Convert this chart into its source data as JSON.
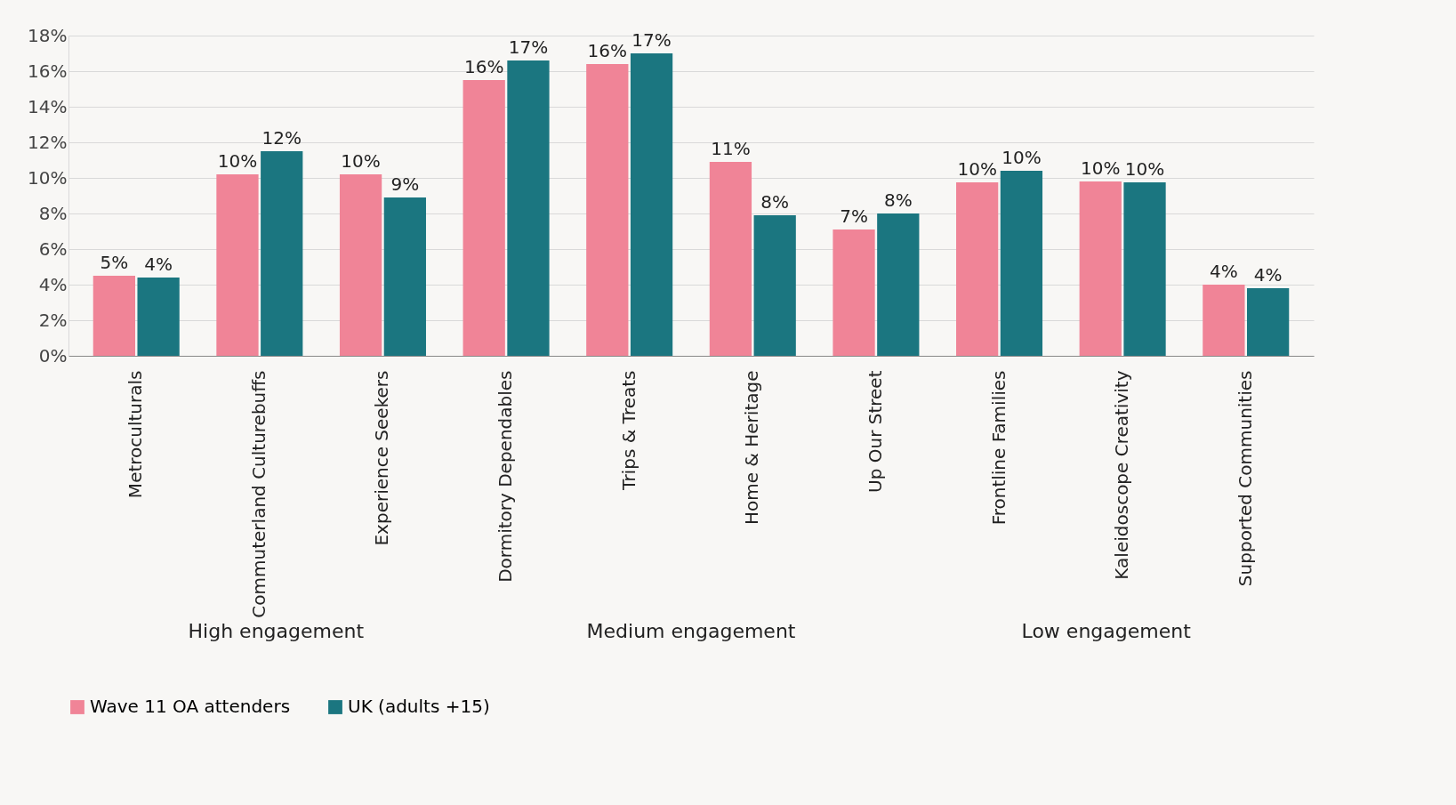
{
  "chart_data": {
    "type": "bar",
    "categories": [
      "Metroculturals",
      "Commuterland Culturebuffs",
      "Experience Seekers",
      "Dormitory Dependables",
      "Trips & Treats",
      "Home & Heritage",
      "Up Our Street",
      "Frontline Families",
      "Kaleidoscope Creativity",
      "Supported Communities"
    ],
    "series": [
      {
        "name": "Wave 11 OA attenders",
        "color": "#f08497",
        "values": [
          4.5,
          10.2,
          10.2,
          15.5,
          16.4,
          10.9,
          7.1,
          9.75,
          9.8,
          4.0
        ],
        "value_labels": [
          "5%",
          "10%",
          "10%",
          "16%",
          "16%",
          "11%",
          "7%",
          "10%",
          "10%",
          "4%"
        ]
      },
      {
        "name": "UK (adults +15)",
        "color": "#1b7680",
        "values": [
          4.4,
          11.5,
          8.9,
          16.6,
          17.0,
          7.9,
          8.0,
          10.4,
          9.75,
          3.8
        ],
        "value_labels": [
          "4%",
          "12%",
          "9%",
          "17%",
          "17%",
          "8%",
          "8%",
          "10%",
          "10%",
          "4%"
        ]
      }
    ],
    "ylim": [
      0,
      18
    ],
    "yticks": [
      {
        "value": 0,
        "label": "0%"
      },
      {
        "value": 2,
        "label": "2%"
      },
      {
        "value": 4,
        "label": "4%"
      },
      {
        "value": 6,
        "label": "6%"
      },
      {
        "value": 8,
        "label": "8%"
      },
      {
        "value": 10,
        "label": "10%"
      },
      {
        "value": 12,
        "label": "12%"
      },
      {
        "value": 14,
        "label": "14%"
      },
      {
        "value": 16,
        "label": "16%"
      },
      {
        "value": 18,
        "label": "18%"
      }
    ],
    "grid": "y",
    "legend": "bottom",
    "annotations": [
      "High engagement",
      "Medium engagement",
      "Low engagement"
    ]
  }
}
